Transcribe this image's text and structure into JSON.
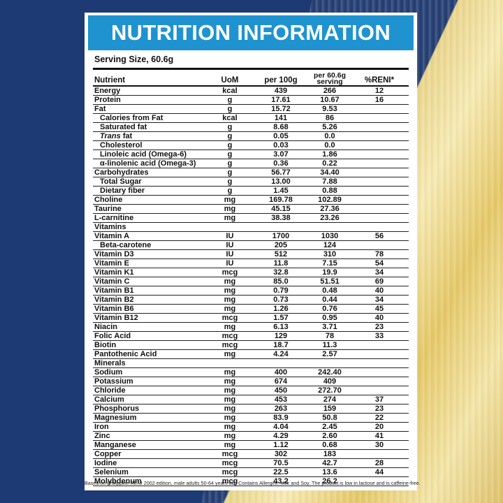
{
  "title": "NUTRITION INFORMATION",
  "serving_size": "Serving Size, 60.6g",
  "headers": {
    "nutrient": "Nutrient",
    "uom": "UoM",
    "per100": "per 100g",
    "per_serving_line1": "per 60.6g",
    "per_serving_line2": "serving",
    "reni": "%RENI*"
  },
  "rows": [
    {
      "name": "Energy",
      "uom": "kcal",
      "per100": "439",
      "serv": "266",
      "reni": "12",
      "sub": false
    },
    {
      "name": "Protein",
      "uom": "g",
      "per100": "17.61",
      "serv": "10.67",
      "reni": "16",
      "sub": false
    },
    {
      "name": "Fat",
      "uom": "g",
      "per100": "15.72",
      "serv": "9.53",
      "reni": "",
      "sub": false
    },
    {
      "name": "Calories from Fat",
      "uom": "kcal",
      "per100": "141",
      "serv": "86",
      "reni": "",
      "sub": true
    },
    {
      "name": "Saturated fat",
      "uom": "g",
      "per100": "8.68",
      "serv": "5.26",
      "reni": "",
      "sub": true
    },
    {
      "name": "Trans fat",
      "uom": "g",
      "per100": "0.05",
      "serv": "0.0",
      "reni": "",
      "sub": true,
      "italic_prefix": "Trans",
      "rest": " fat"
    },
    {
      "name": "Cholesterol",
      "uom": "g",
      "per100": "0.03",
      "serv": "0.0",
      "reni": "",
      "sub": true
    },
    {
      "name": "Linoleic acid (Omega-6)",
      "uom": "g",
      "per100": "3.07",
      "serv": "1.86",
      "reni": "",
      "sub": true
    },
    {
      "name": "α-linolenic acid (Omega-3)",
      "uom": "g",
      "per100": "0.36",
      "serv": "0.22",
      "reni": "",
      "sub": true
    },
    {
      "name": "Carbohydrates",
      "uom": "g",
      "per100": "56.77",
      "serv": "34.40",
      "reni": "",
      "sub": false
    },
    {
      "name": "Total Sugar",
      "uom": "g",
      "per100": "13.00",
      "serv": "7.88",
      "reni": "",
      "sub": true
    },
    {
      "name": "Dietary fiber",
      "uom": "g",
      "per100": "1.45",
      "serv": "0.88",
      "reni": "",
      "sub": true
    },
    {
      "name": "Choline",
      "uom": "mg",
      "per100": "169.78",
      "serv": "102.89",
      "reni": "",
      "sub": false
    },
    {
      "name": "Taurine",
      "uom": "mg",
      "per100": "45.15",
      "serv": "27.36",
      "reni": "",
      "sub": false
    },
    {
      "name": "L-carnitine",
      "uom": "mg",
      "per100": "38.38",
      "serv": "23.26",
      "reni": "",
      "sub": false
    },
    {
      "name": "Vitamins",
      "uom": "",
      "per100": "",
      "serv": "",
      "reni": "",
      "sub": false
    },
    {
      "name": "Vitamin A",
      "uom": "IU",
      "per100": "1700",
      "serv": "1030",
      "reni": "56",
      "sub": false
    },
    {
      "name": "Beta-carotene",
      "uom": "IU",
      "per100": "205",
      "serv": "124",
      "reni": "",
      "sub": true
    },
    {
      "name": "Vitamin D3",
      "uom": "IU",
      "per100": "512",
      "serv": "310",
      "reni": "78",
      "sub": false
    },
    {
      "name": "Vitamin E",
      "uom": "IU",
      "per100": "11.8",
      "serv": "7.15",
      "reni": "54",
      "sub": false
    },
    {
      "name": "Vitamin K1",
      "uom": "mcg",
      "per100": "32.8",
      "serv": "19.9",
      "reni": "34",
      "sub": false
    },
    {
      "name": "Vitamin C",
      "uom": "mg",
      "per100": "85.0",
      "serv": "51.51",
      "reni": "69",
      "sub": false
    },
    {
      "name": "Vitamin B1",
      "uom": "mg",
      "per100": "0.79",
      "serv": "0.48",
      "reni": "40",
      "sub": false
    },
    {
      "name": "Vitamin B2",
      "uom": "mg",
      "per100": "0.73",
      "serv": "0.44",
      "reni": "34",
      "sub": false
    },
    {
      "name": "Vitamin B6",
      "uom": "mg",
      "per100": "1.26",
      "serv": "0.76",
      "reni": "45",
      "sub": false
    },
    {
      "name": "Vitamin B12",
      "uom": "mcg",
      "per100": "1.57",
      "serv": "0.95",
      "reni": "40",
      "sub": false
    },
    {
      "name": "Niacin",
      "uom": "mg",
      "per100": "6.13",
      "serv": "3.71",
      "reni": "23",
      "sub": false
    },
    {
      "name": "Folic Acid",
      "uom": "mcg",
      "per100": "129",
      "serv": "78",
      "reni": "33",
      "sub": false
    },
    {
      "name": "Biotin",
      "uom": "mcg",
      "per100": "18.7",
      "serv": "11.3",
      "reni": "",
      "sub": false
    },
    {
      "name": "Pantothenic Acid",
      "uom": "mg",
      "per100": "4.24",
      "serv": "2.57",
      "reni": "",
      "sub": false
    },
    {
      "name": "Minerals",
      "uom": "",
      "per100": "",
      "serv": "",
      "reni": "",
      "sub": false
    },
    {
      "name": "Sodium",
      "uom": "mg",
      "per100": "400",
      "serv": "242.40",
      "reni": "",
      "sub": false
    },
    {
      "name": "Potassium",
      "uom": "mg",
      "per100": "674",
      "serv": "409",
      "reni": "",
      "sub": false
    },
    {
      "name": "Chloride",
      "uom": "mg",
      "per100": "450",
      "serv": "272.70",
      "reni": "",
      "sub": false
    },
    {
      "name": "Calcium",
      "uom": "mg",
      "per100": "453",
      "serv": "274",
      "reni": "37",
      "sub": false
    },
    {
      "name": "Phosphorus",
      "uom": "mg",
      "per100": "263",
      "serv": "159",
      "reni": "23",
      "sub": false
    },
    {
      "name": "Magnesium",
      "uom": "mg",
      "per100": "83.9",
      "serv": "50.8",
      "reni": "22",
      "sub": false
    },
    {
      "name": "Iron",
      "uom": "mg",
      "per100": "4.04",
      "serv": "2.45",
      "reni": "20",
      "sub": false
    },
    {
      "name": "Zinc",
      "uom": "mg",
      "per100": "4.29",
      "serv": "2.60",
      "reni": "41",
      "sub": false
    },
    {
      "name": "Manganese",
      "uom": "mg",
      "per100": "1.12",
      "serv": "0.68",
      "reni": "30",
      "sub": false
    },
    {
      "name": "Copper",
      "uom": "mcg",
      "per100": "302",
      "serv": "183",
      "reni": "",
      "sub": false
    },
    {
      "name": "Iodine",
      "uom": "mcg",
      "per100": "70.5",
      "serv": "42.7",
      "reni": "28",
      "sub": false
    },
    {
      "name": "Selenium",
      "uom": "mcg",
      "per100": "22.5",
      "serv": "13.6",
      "reni": "44",
      "sub": false
    },
    {
      "name": "Molybdenum",
      "uom": "mcg",
      "per100": "43.2",
      "serv": "26.2",
      "reni": "",
      "sub": false
    }
  ],
  "footnote": "Based on Philippine RENI 2002 edition, male adults 50-64 years old. Contains Allergen: Milk and Soy. The product is low in lactose and is caffeine-free.",
  "colors": {
    "background_blue": "#1e3a74",
    "title_blue": "#1f93d0",
    "gold": "#e4c766"
  }
}
